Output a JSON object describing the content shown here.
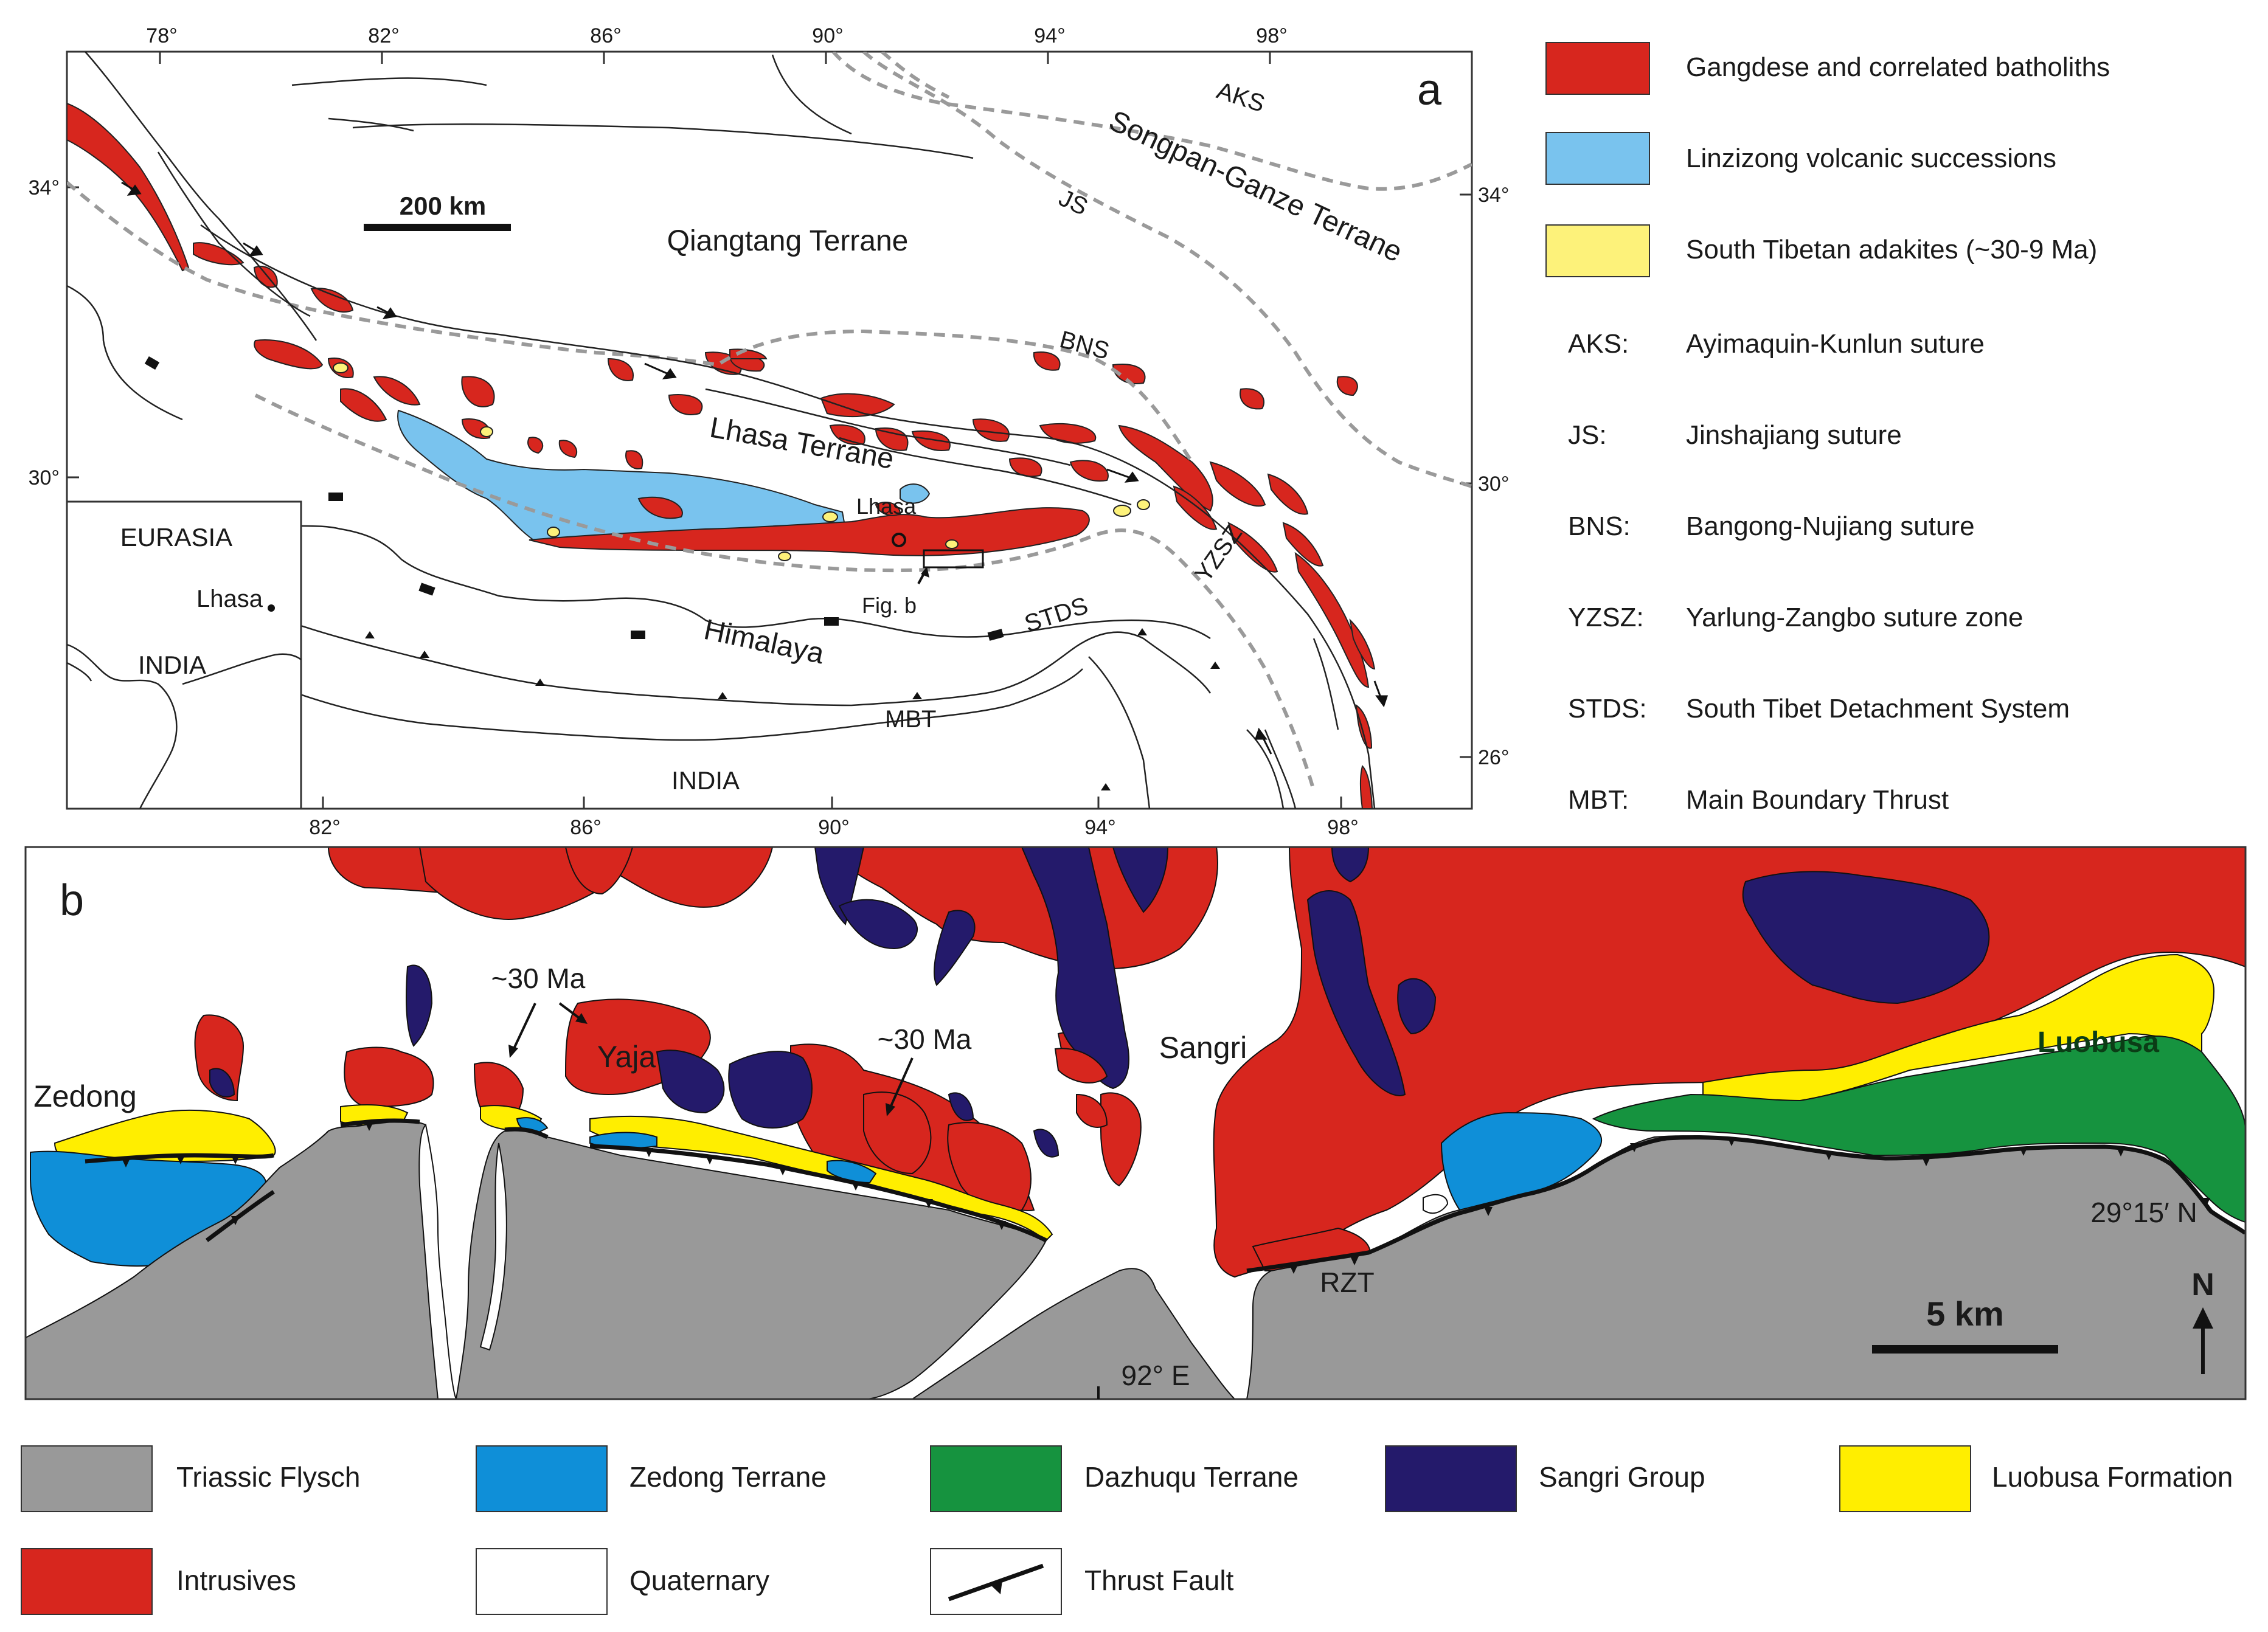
{
  "panel_a": {
    "letter": "a",
    "top_lon_ticks": [
      "78°",
      "82°",
      "86°",
      "90°",
      "94°",
      "98°"
    ],
    "bottom_lon_ticks": [
      "82°",
      "86°",
      "90°",
      "94°",
      "98°"
    ],
    "left_lat_ticks": [
      "34°",
      "30°"
    ],
    "right_lat_ticks": [
      "34°",
      "30°",
      "26°"
    ],
    "scale_bar": "200 km",
    "labels": {
      "qiangtang": "Qiangtang Terrane",
      "songpan": "Songpan-Ganze Terrane",
      "lhasa_terrane": "Lhasa Terrane",
      "lhasa_city": "Lhasa",
      "fig_b": "Fig. b",
      "himalaya": "Himalaya",
      "india": "INDIA",
      "aks": "AKS",
      "js": "JS",
      "bns": "BNS",
      "yzsz": "YZSZ",
      "stds": "STDS",
      "mbt": "MBT"
    },
    "inset": {
      "eurasia": "EURASIA",
      "lhasa": "Lhasa",
      "india": "INDIA"
    }
  },
  "legend_a": [
    {
      "swatch": "#d7261e",
      "text": "Gangdese and correlated batholiths"
    },
    {
      "swatch": "#79c3ee",
      "text": "Linzizong volcanic successions"
    },
    {
      "swatch": "#fdf27a",
      "text": "South Tibetan adakites (~30-9 Ma)"
    }
  ],
  "abbreviations": [
    {
      "abbr": "AKS:",
      "meaning": "Ayimaquin-Kunlun suture"
    },
    {
      "abbr": "JS:",
      "meaning": "Jinshajiang suture"
    },
    {
      "abbr": "BNS:",
      "meaning": "Bangong-Nujiang suture"
    },
    {
      "abbr": "YZSZ:",
      "meaning": "Yarlung-Zangbo suture zone"
    },
    {
      "abbr": "STDS:",
      "meaning": "South Tibet Detachment System"
    },
    {
      "abbr": "MBT:",
      "meaning": "Main Boundary Thrust"
    }
  ],
  "panel_b": {
    "letter": "b",
    "labels": {
      "zedong": "Zedong",
      "age1": "~30 Ma",
      "yaja": "Yaja",
      "age2": "~30 Ma",
      "sangri": "Sangri",
      "luobusa": "Luobusa",
      "rzt": "RZT",
      "lat": "29°15′ N",
      "lon": "92° E",
      "north": "N"
    },
    "scale_bar": "5 km"
  },
  "legend_b": [
    {
      "swatch": "#999999",
      "text": "Triassic Flysch"
    },
    {
      "swatch": "#0f8fd8",
      "text": "Zedong Terrane"
    },
    {
      "swatch": "#16933f",
      "text": "Dazhuqu Terrane"
    },
    {
      "swatch": "#241a6b",
      "text": "Sangri Group"
    },
    {
      "swatch": "#ffee00",
      "text": "Luobusa Formation"
    },
    {
      "swatch": "#d7261e",
      "text": "Intrusives"
    },
    {
      "swatch": "#ffffff",
      "text": "Quaternary"
    },
    {
      "swatch": "thrust",
      "text": "Thrust Fault"
    }
  ],
  "colors": {
    "batholith": "#d7261e",
    "linzizong": "#79c3ee",
    "adakite": "#fdf27a",
    "flysch": "#999999",
    "zedong": "#0f8fd8",
    "dazhuqu": "#16933f",
    "sangri": "#241a6b",
    "luobusa": "#ffee00"
  }
}
